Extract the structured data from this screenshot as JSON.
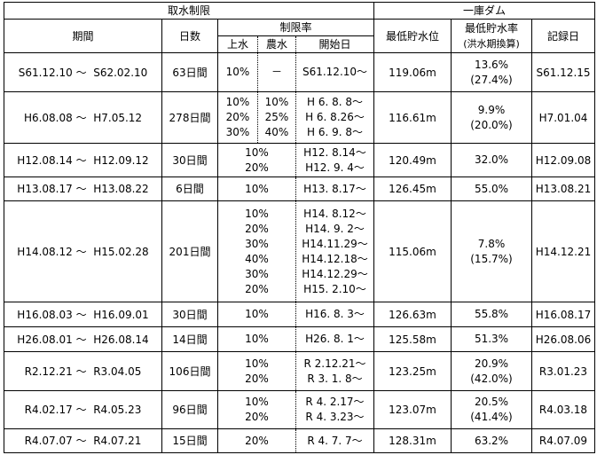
{
  "headers": {
    "group_left": "取水制限",
    "group_right": "一庫ダム",
    "period": "期間",
    "days": "日数",
    "rate": "制限率",
    "water": "上水",
    "agri": "農水",
    "start": "開始日",
    "min_storage": "最低貯水位",
    "min_rate": "最低貯水率",
    "min_rate_sub": "(洪水期換算)",
    "record": "記録日"
  },
  "rows": [
    {
      "from": "S61.12.10",
      "to": "S62.02.10",
      "days": "63日間",
      "split": true,
      "water": [
        "10%"
      ],
      "agri": [
        "－"
      ],
      "starts": [
        "S61.12.10～"
      ],
      "level": "119.06m",
      "rate": [
        "13.6%",
        "(27.4%)"
      ],
      "record": "S61.12.15"
    },
    {
      "from": "H6.08.08",
      "to": "H7.05.12",
      "days": "278日間",
      "split": true,
      "water": [
        "10%",
        "20%",
        "30%"
      ],
      "agri": [
        "10%",
        "25%",
        "40%"
      ],
      "starts": [
        "H 6. 8. 8～",
        "H 6. 8.26～",
        "H 6. 9. 8～"
      ],
      "level": "116.61m",
      "rate": [
        "9.9%",
        "(20.0%)"
      ],
      "record": "H7.01.04"
    },
    {
      "from": "H12.08.14",
      "to": "H12.09.12",
      "days": "30日間",
      "split": false,
      "water": [
        "10%",
        "20%"
      ],
      "starts": [
        "H12. 8.14～",
        "H12. 9. 4～"
      ],
      "level": "120.49m",
      "rate": [
        "32.0%"
      ],
      "record": "H12.09.08"
    },
    {
      "from": "H13.08.17",
      "to": "H13.08.22",
      "days": "6日間",
      "split": false,
      "water": [
        "10%"
      ],
      "starts": [
        "H13. 8.17～"
      ],
      "level": "126.45m",
      "rate": [
        "55.0%"
      ],
      "record": "H13.08.21"
    },
    {
      "from": "H14.08.12",
      "to": "H15.02.28",
      "days": "201日間",
      "split": false,
      "water": [
        "10%",
        "20%",
        "30%",
        "40%",
        "30%",
        "20%"
      ],
      "starts": [
        "H14. 8.12～",
        "H14. 9. 2～",
        "H14.11.29～",
        "H14.12.18～",
        "H14.12.29～",
        "H15. 2.10～"
      ],
      "level": "115.06m",
      "rate": [
        "7.8%",
        "(15.7%)"
      ],
      "record": "H14.12.21"
    },
    {
      "from": "H16.08.03",
      "to": "H16.09.01",
      "days": "30日間",
      "split": false,
      "water": [
        "10%"
      ],
      "starts": [
        "H16. 8. 3～"
      ],
      "level": "126.63m",
      "rate": [
        "55.8%"
      ],
      "record": "H16.08.17"
    },
    {
      "from": "H26.08.01",
      "to": "H26.08.14",
      "days": "14日間",
      "split": false,
      "water": [
        "10%"
      ],
      "starts": [
        "H26. 8. 1～"
      ],
      "level": "125.58m",
      "rate": [
        "51.3%"
      ],
      "record": "H26.08.06"
    },
    {
      "from": "R2.12.21",
      "to": "R3.04.05",
      "days": "106日間",
      "split": false,
      "water": [
        "10%",
        "20%"
      ],
      "starts": [
        "R 2.12.21～",
        "R 3. 1. 8～"
      ],
      "level": "123.25m",
      "rate": [
        "20.9%",
        "(42.0%)"
      ],
      "record": "R3.01.23"
    },
    {
      "from": "R4.02.17",
      "to": "R4.05.23",
      "days": "96日間",
      "split": false,
      "water": [
        "10%",
        "20%"
      ],
      "starts": [
        "R 4. 2.17～",
        "R 4. 3.23～"
      ],
      "level": "123.07m",
      "rate": [
        "20.5%",
        "(41.4%)"
      ],
      "record": "R4.03.18"
    },
    {
      "from": "R4.07.07",
      "to": "R4.07.21",
      "days": "15日間",
      "split": false,
      "water": [
        "20%"
      ],
      "starts": [
        "R 4. 7. 7～"
      ],
      "level": "128.31m",
      "rate": [
        "63.2%"
      ],
      "record": "R4.07.09"
    }
  ]
}
